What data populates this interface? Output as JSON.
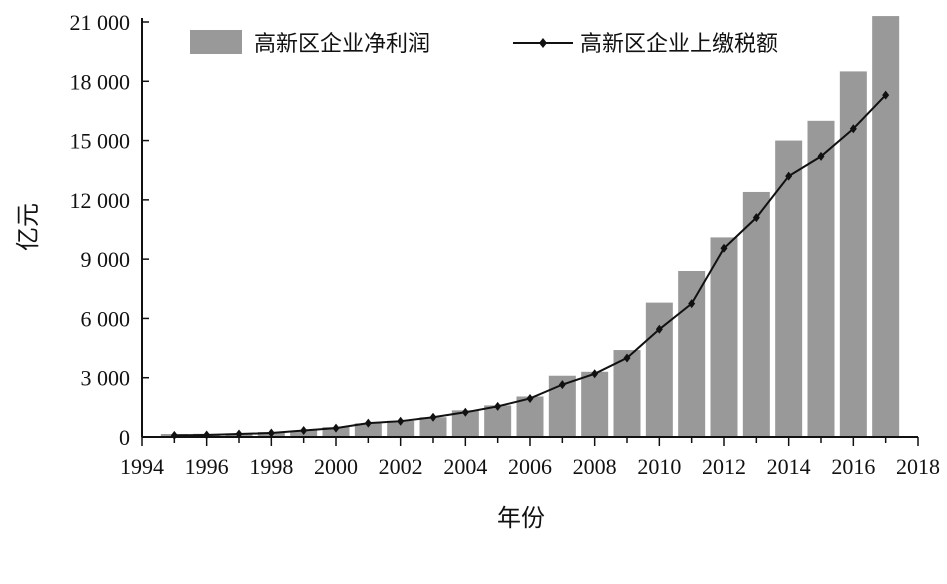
{
  "chart_data": {
    "type": "bar",
    "xlabel": "年份",
    "ylabel": "亿元",
    "xlim": [
      1994,
      2018
    ],
    "ylim": [
      0,
      21000
    ],
    "x_ticks": [
      "1994",
      "1996",
      "1998",
      "2000",
      "2002",
      "2004",
      "2006",
      "2008",
      "2010",
      "2012",
      "2014",
      "2016",
      "2018"
    ],
    "y_ticks": [
      "0",
      "3 000",
      "6 000",
      "9 000",
      "12 000",
      "15 000",
      "18 000",
      "21 000"
    ],
    "x": [
      1995,
      1996,
      1997,
      1998,
      1999,
      2000,
      2001,
      2002,
      2003,
      2004,
      2005,
      2006,
      2007,
      2008,
      2009,
      2010,
      2011,
      2012,
      2013,
      2014,
      2015,
      2016,
      2017
    ],
    "series": [
      {
        "name": "高新区企业净利润",
        "kind": "bar",
        "color": "#999999",
        "values": [
          150,
          160,
          180,
          250,
          330,
          500,
          690,
          820,
          1000,
          1350,
          1600,
          2050,
          3100,
          3300,
          4400,
          6800,
          8400,
          10100,
          12400,
          15000,
          16000,
          18500,
          21300
        ]
      },
      {
        "name": "高新区企业上缴税额",
        "kind": "line",
        "color": "#111111",
        "values": [
          80,
          100,
          150,
          200,
          330,
          450,
          700,
          800,
          1000,
          1250,
          1550,
          1950,
          2650,
          3200,
          4000,
          5450,
          6750,
          9550,
          11100,
          13200,
          14200,
          15600,
          17300
        ]
      }
    ],
    "legend_position": "top"
  }
}
